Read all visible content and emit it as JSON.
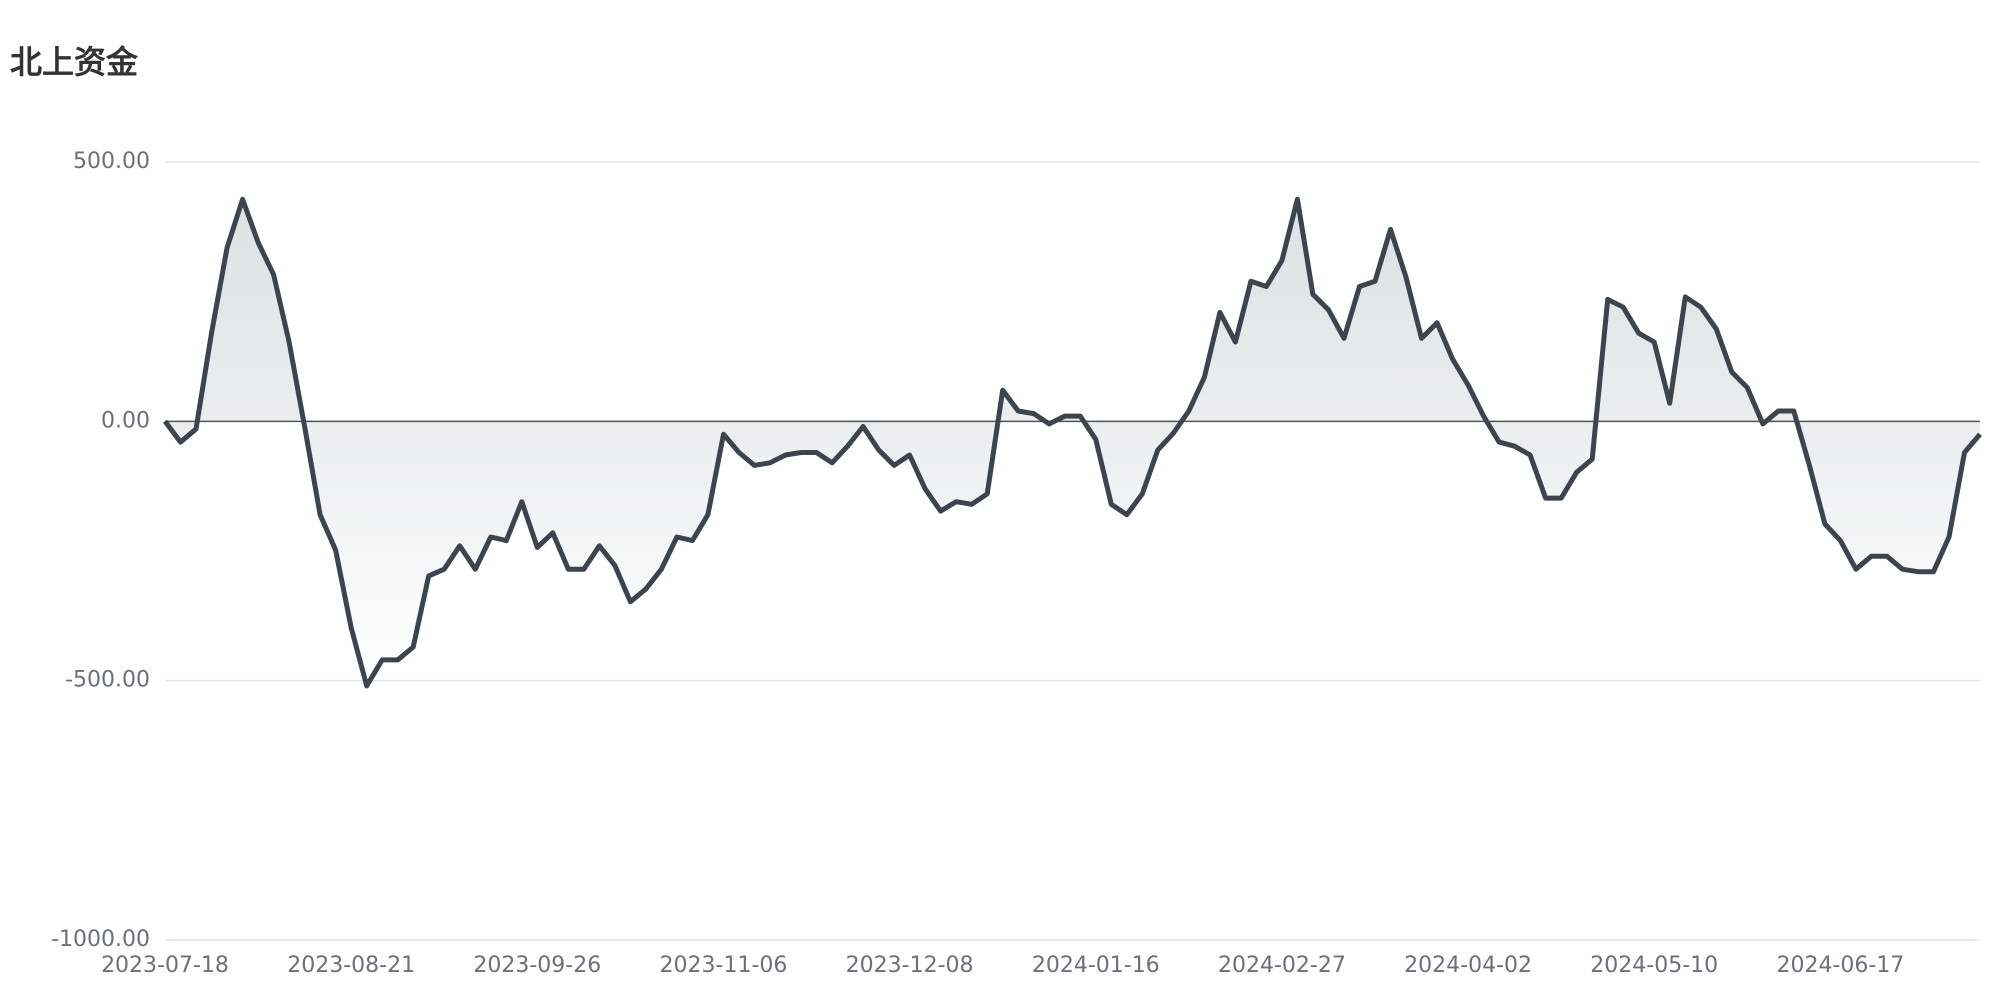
{
  "chart_data": {
    "type": "line",
    "title": "北上资金",
    "categories": [
      "2023-07-18",
      null,
      null,
      null,
      null,
      null,
      null,
      null,
      null,
      null,
      null,
      null,
      "2023-08-21",
      null,
      null,
      null,
      null,
      null,
      null,
      null,
      null,
      null,
      null,
      null,
      "2023-09-26",
      null,
      null,
      null,
      null,
      null,
      null,
      null,
      null,
      null,
      null,
      null,
      "2023-11-06",
      null,
      null,
      null,
      null,
      null,
      null,
      null,
      null,
      null,
      null,
      null,
      "2023-12-08",
      null,
      null,
      null,
      null,
      null,
      null,
      null,
      null,
      null,
      null,
      null,
      "2024-01-16",
      null,
      null,
      null,
      null,
      null,
      null,
      null,
      null,
      null,
      null,
      null,
      "2024-02-27",
      null,
      null,
      null,
      null,
      null,
      null,
      null,
      null,
      null,
      null,
      null,
      "2024-04-02",
      null,
      null,
      null,
      null,
      null,
      null,
      null,
      null,
      null,
      null,
      null,
      "2024-05-10",
      null,
      null,
      null,
      null,
      null,
      null,
      null,
      null,
      null,
      null,
      null,
      "2024-06-17",
      null,
      null,
      null,
      null,
      null,
      null,
      null,
      null,
      null
    ],
    "values": [
      0,
      -40,
      -15,
      170,
      335,
      428,
      345,
      283,
      153,
      -10,
      -180,
      -248,
      -398,
      -510,
      -460,
      -460,
      -435,
      -298,
      -285,
      -240,
      -285,
      -223,
      -230,
      -155,
      -243,
      -215,
      -285,
      -285,
      -240,
      -278,
      -348,
      -323,
      -285,
      -223,
      -230,
      -180,
      -25,
      -60,
      -85,
      -80,
      -65,
      -60,
      -60,
      -80,
      -48,
      -10,
      -55,
      -85,
      -65,
      -130,
      -173,
      -155,
      -160,
      -140,
      60,
      20,
      15,
      -5,
      10,
      10,
      -35,
      -160,
      -180,
      -140,
      -55,
      -23,
      20,
      85,
      210,
      153,
      270,
      260,
      310,
      428,
      245,
      215,
      160,
      260,
      270,
      370,
      278,
      160,
      190,
      120,
      70,
      10,
      -40,
      -48,
      -65,
      -148,
      -148,
      -98,
      -73,
      235,
      220,
      170,
      153,
      35,
      240,
      220,
      178,
      95,
      65,
      -5,
      20,
      20,
      -85,
      -198,
      -230,
      -285,
      -260,
      -260,
      -285,
      -290,
      -290,
      -223,
      -60,
      -25
    ],
    "color": "#3d444d",
    "ylim": [
      -1000,
      500
    ],
    "yticks": [
      {
        "value": -1000,
        "label": "-1000.00"
      },
      {
        "value": -500,
        "label": "-500.00"
      },
      {
        "value": 0,
        "label": "0.00"
      },
      {
        "value": 500,
        "label": "500.00"
      }
    ],
    "grid": true
  }
}
